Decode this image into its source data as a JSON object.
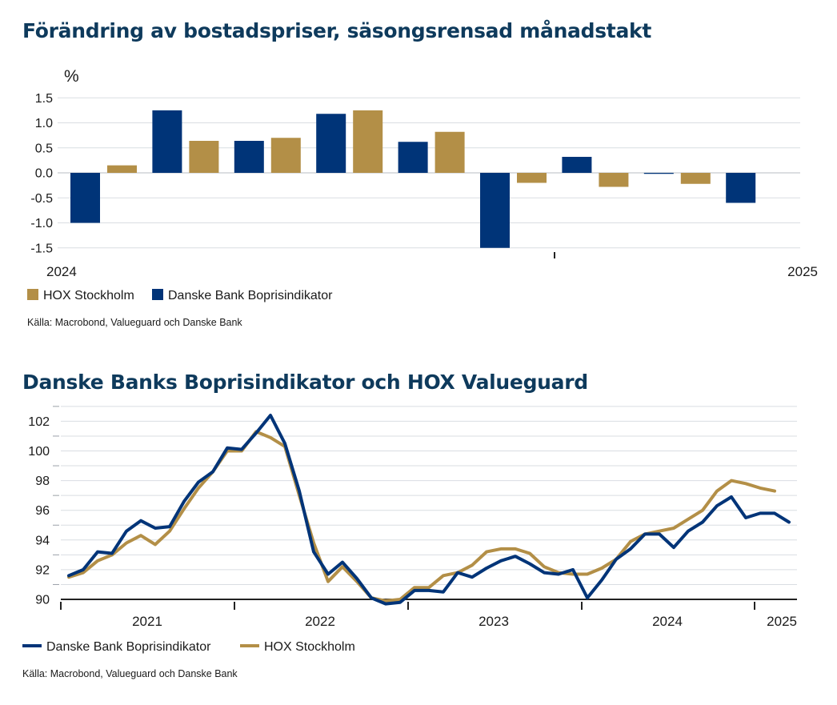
{
  "charts_meta": {
    "colors": {
      "danske": "#003478",
      "hox": "#B38F47",
      "grid": "#d9dde2",
      "axis": "#222222"
    }
  },
  "chart1": {
    "title": "Förändring av bostadspriser, säsongsrensad månadstakt",
    "source": "Källa: Macrobond, Valueguard och Danske Bank"
  },
  "chart2": {
    "title": "Danske Banks Boprisindikator och HOX Valueguard",
    "source": "Källa: Macrobond, Valueguard och Danske Bank"
  },
  "chart_data": [
    {
      "type": "bar",
      "title": "Förändring av bostadspriser, säsongsrensad månadstakt",
      "ylabel": "%",
      "ylim": [
        -1.5,
        1.5
      ],
      "yticks": [
        "1.5",
        "1.0",
        "0.5",
        "0.0",
        "-0.5",
        "-1.0",
        "-1.5"
      ],
      "xtick_labels": [
        "2024",
        "2025"
      ],
      "grid": true,
      "legend": "bottom-left",
      "months": 9,
      "series": [
        {
          "name": "HOX Stockholm",
          "color": "#B38F47",
          "values": [
            0.15,
            0.64,
            0.7,
            1.25,
            0.82,
            -0.2,
            -0.28,
            -0.22,
            null
          ]
        },
        {
          "name": "Danske Bank Boprisindikator",
          "color": "#003478",
          "values": [
            -1.0,
            1.25,
            0.64,
            1.18,
            0.62,
            -1.5,
            0.32,
            -0.02,
            -0.6
          ]
        }
      ],
      "legend_order": [
        "HOX Stockholm",
        "Danske Bank Boprisindikator"
      ]
    },
    {
      "type": "line",
      "title": "Danske Banks Boprisindikator och HOX Valueguard",
      "ylim": [
        90,
        102
      ],
      "yticks": [
        "102",
        "100",
        "98",
        "96",
        "94",
        "92",
        "90"
      ],
      "xtick_labels": [
        "2021",
        "2022",
        "2023",
        "2024",
        "2025"
      ],
      "grid": true,
      "legend": "bottom-left",
      "legend_order": [
        "Danske Bank Boprisindikator",
        "HOX Stockholm"
      ],
      "series": [
        {
          "name": "Danske Bank Boprisindikator",
          "color": "#003478",
          "values": [
            91.6,
            92.0,
            93.2,
            93.1,
            94.6,
            95.3,
            94.8,
            94.9,
            96.6,
            97.9,
            98.6,
            100.2,
            100.1,
            101.2,
            102.4,
            100.5,
            97.3,
            93.2,
            91.7,
            92.5,
            91.4,
            90.1,
            89.7,
            89.8,
            90.6,
            90.6,
            90.5,
            91.8,
            91.5,
            92.1,
            92.6,
            92.9,
            92.4,
            91.8,
            91.7,
            92.0,
            90.1,
            91.3,
            92.7,
            93.4,
            94.4,
            94.4,
            93.5,
            94.6,
            95.2,
            96.3,
            96.9,
            95.5,
            95.8,
            95.8,
            95.2
          ]
        },
        {
          "name": "HOX Stockholm",
          "color": "#B38F47",
          "values": [
            91.5,
            91.8,
            92.6,
            93.0,
            93.8,
            94.3,
            93.7,
            94.6,
            96.1,
            97.5,
            98.6,
            100.0,
            100.0,
            101.3,
            100.9,
            100.3,
            97.0,
            93.8,
            91.2,
            92.2,
            91.2,
            90.1,
            89.9,
            90.0,
            90.8,
            90.8,
            91.6,
            91.8,
            92.3,
            93.2,
            93.4,
            93.4,
            93.1,
            92.2,
            91.8,
            91.7,
            91.7,
            92.1,
            92.7,
            93.9,
            94.4,
            94.6,
            94.8,
            95.4,
            96.0,
            97.3,
            98.0,
            97.8,
            97.5,
            97.3
          ]
        }
      ]
    }
  ]
}
